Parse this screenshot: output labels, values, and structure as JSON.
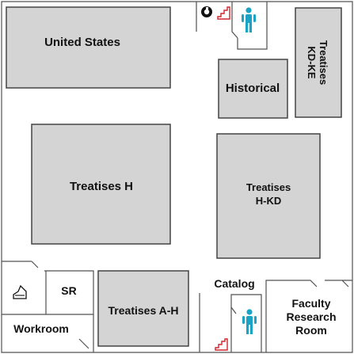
{
  "colors": {
    "stack_fill": "#d4d4d4",
    "wall": "#505050",
    "restroom_icon": "#1aa3c4",
    "stairs_icon": "#d0242c"
  },
  "areas": {
    "united_states": "United States",
    "treatises_kd_ke_line1": "Treatises",
    "treatises_kd_ke_line2": "KD-KE",
    "historical": "Historical",
    "treatises_h": "Treatises H",
    "treatises_h_kd_line1": "Treatises",
    "treatises_h_kd_line2": "H-KD",
    "sr": "SR",
    "treatises_a_h": "Treatises A-H",
    "catalog": "Catalog",
    "faculty_line1": "Faculty",
    "faculty_line2": "Research",
    "faculty_line3": "Room",
    "workroom": "Workroom"
  },
  "icons": {
    "restroom_top": "restroom-icon",
    "restroom_bottom": "restroom-icon",
    "stairs_top": "stairs-icon",
    "stairs_bottom": "stairs-icon",
    "accessibility": "accessibility-icon",
    "printer": "printer-icon"
  }
}
